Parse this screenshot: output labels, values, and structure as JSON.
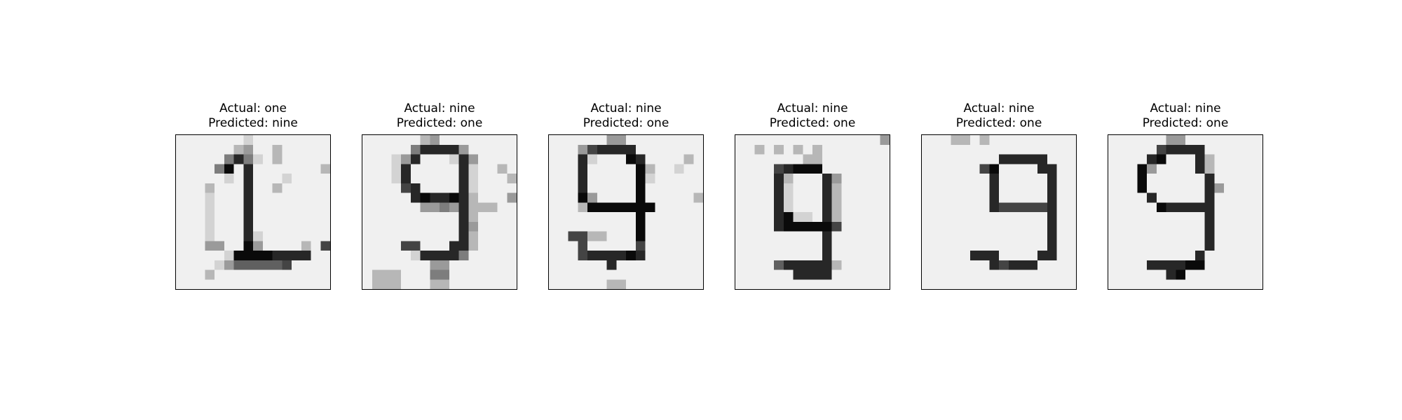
{
  "chart_data": [
    {
      "type": "heatmap",
      "title_line1": "Actual: one",
      "title_line2": "Predicted: nine",
      "actual": "one",
      "predicted": "nine",
      "grid_size": [
        16,
        16
      ],
      "colormap": "gray_r",
      "pixels": [
        "0000000100000000",
        "0000002300200000",
        "0000047410200000",
        "0000480700000002",
        "0000010700010000",
        "0002000700200000",
        "0001000700000000",
        "0001000700000000",
        "0001000700000000",
        "0001000700000000",
        "0001000710000000",
        "0003300830000206",
        "0000018888777700",
        "0000135555560000",
        "0002000000000000",
        "0000000000000000"
      ]
    },
    {
      "type": "heatmap",
      "title_line1": "Actual: nine",
      "title_line2": "Predicted: one",
      "actual": "nine",
      "predicted": "one",
      "grid_size": [
        16,
        16
      ],
      "colormap": "gray_r",
      "pixels": [
        "0000002300000000",
        "0000047777300000",
        "0001370001730000",
        "0001700000710020",
        "0001700000710002",
        "0000670000710000",
        "0000078778720003",
        "0000003343722200",
        "0000000000720000",
        "0000000000730000",
        "0000000000720000",
        "0000660007720000",
        "0000017777400000",
        "0000000330000000",
        "0222000440000000",
        "0222000220000000"
      ]
    },
    {
      "type": "heatmap",
      "title_line1": "Actual: nine",
      "title_line2": "Predicted: one",
      "actual": "nine",
      "predicted": "one",
      "grid_size": [
        16,
        16
      ],
      "colormap": "gray_r",
      "pixels": [
        "0000003300000000",
        "0003677770000000",
        "0007100087000020",
        "0007000008200100",
        "0007000008100000",
        "0007000008000000",
        "0008300008000002",
        "0002888888800000",
        "0000000008000000",
        "0000000008000000",
        "0066220008000000",
        "0006000006000000",
        "0006777787000000",
        "0000007000000000",
        "0000000000000000",
        "0000002200000000"
      ]
    },
    {
      "type": "heatmap",
      "title_line1": "Actual: nine",
      "title_line2": "Predicted: one",
      "actual": "nine",
      "predicted": "one",
      "grid_size": [
        16,
        16
      ],
      "colormap": "gray_r",
      "pixels": [
        "0000000000000003",
        "0020202020000000",
        "0000000220000000",
        "0000678880000000",
        "0000720007300000",
        "0000710007200000",
        "0000710007200000",
        "0000710007200000",
        "0000781107200000",
        "0000788888600000",
        "0000000007000000",
        "0000000007000000",
        "0000000007000000",
        "0000577777200000",
        "0000007777000000",
        "0000000000000000"
      ]
    },
    {
      "type": "heatmap",
      "title_line1": "Actual: nine",
      "title_line2": "Predicted: one",
      "actual": "nine",
      "predicted": "one",
      "grid_size": [
        16,
        16
      ],
      "colormap": "gray_r",
      "pixels": [
        "0002202000000000",
        "0000000000000000",
        "0000000077777000",
        "0000006800007700",
        "0000000700000700",
        "0000000700000700",
        "0000000700000700",
        "0000000766666700",
        "0000000000000700",
        "0000000000000700",
        "0000000000000700",
        "0000000000000700",
        "0000077700007700",
        "0000000767770000",
        "0000000000000000",
        "0000000000000000"
      ]
    },
    {
      "type": "heatmap",
      "title_line1": "Actual: nine",
      "title_line2": "Predicted: one",
      "actual": "nine",
      "predicted": "one",
      "grid_size": [
        16,
        16
      ],
      "colormap": "gray_r",
      "pixels": [
        "0000003300000000",
        "0000067777000000",
        "0000780007200000",
        "0008300007200000",
        "0008000000700000",
        "0008000000730000",
        "0000700000700000",
        "0000087777700000",
        "0000000000700000",
        "0000000000700000",
        "0000000000700000",
        "0000000000700000",
        "0000000007000000",
        "0000777788000000",
        "0000007800000000",
        "0000000000000000"
      ]
    }
  ]
}
